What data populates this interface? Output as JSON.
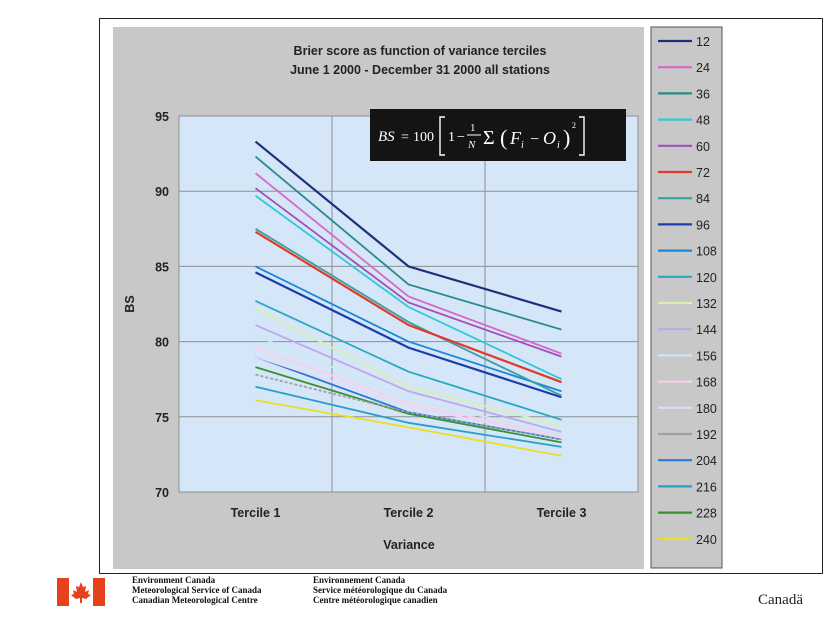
{
  "chart_data": {
    "type": "line",
    "title": "Brier score as function of variance terciles",
    "subtitle": "June 1 2000 - December 31 2000 all stations",
    "xlabel": "Variance",
    "ylabel": "BS",
    "categories": [
      "Tercile 1",
      "Tercile 2",
      "Tercile 3"
    ],
    "ylim": [
      70,
      95
    ],
    "yticks": [
      70,
      75,
      80,
      85,
      90,
      95
    ],
    "grid": true,
    "legend_position": "right",
    "formula": {
      "prefix": "BS",
      "equals": "=",
      "coef": "100",
      "one": "1",
      "minus": "−",
      "frac_num": "1",
      "frac_den": "N",
      "sum": "Σ",
      "F": "F",
      "O": "O",
      "i": "i",
      "sq": "2"
    },
    "series": [
      {
        "name": "12",
        "color": "#1f2f7a",
        "values": [
          93.3,
          85.0,
          82.0
        ]
      },
      {
        "name": "24",
        "color": "#d868c8",
        "values": [
          91.2,
          83.0,
          79.2
        ]
      },
      {
        "name": "36",
        "color": "#2a8a8a",
        "values": [
          92.3,
          83.8,
          80.8
        ]
      },
      {
        "name": "48",
        "color": "#30c8d8",
        "values": [
          89.7,
          82.3,
          77.5
        ]
      },
      {
        "name": "60",
        "color": "#a050b8",
        "values": [
          90.2,
          82.6,
          79.0
        ]
      },
      {
        "name": "72",
        "color": "#e03a28",
        "values": [
          87.3,
          81.1,
          77.3
        ]
      },
      {
        "name": "84",
        "color": "#38a0a0",
        "values": [
          87.5,
          81.3,
          76.4
        ]
      },
      {
        "name": "96",
        "color": "#1a3eaa",
        "values": [
          84.6,
          79.6,
          76.3
        ]
      },
      {
        "name": "108",
        "color": "#1a88d8",
        "values": [
          85.0,
          80.0,
          76.7
        ]
      },
      {
        "name": "120",
        "color": "#28a8c0",
        "values": [
          82.7,
          78.0,
          74.8
        ]
      },
      {
        "name": "132",
        "color": "#d8f0b0",
        "values": [
          82.2,
          77.0,
          74.4
        ]
      },
      {
        "name": "144",
        "color": "#c0a8e8",
        "values": [
          81.1,
          76.7,
          74.0
        ]
      },
      {
        "name": "156",
        "color": "#c8e8f8",
        "values": [
          80.4,
          76.2,
          73.8
        ]
      },
      {
        "name": "168",
        "color": "#f8d0e8",
        "values": [
          79.6,
          75.9,
          73.7
        ]
      },
      {
        "name": "180",
        "color": "#e8d8f8",
        "values": [
          79.0,
          75.7,
          73.6
        ]
      },
      {
        "name": "192",
        "color": "#a0a0a0",
        "values": [
          77.8,
          75.3,
          73.5
        ]
      },
      {
        "name": "204",
        "color": "#2878d8",
        "values": [
          79.0,
          75.3,
          73.5
        ]
      },
      {
        "name": "216",
        "color": "#28a0c8",
        "values": [
          77.0,
          74.6,
          73.0
        ]
      },
      {
        "name": "228",
        "color": "#3a9030",
        "values": [
          78.3,
          75.2,
          73.3
        ]
      },
      {
        "name": "240",
        "color": "#e8e020",
        "values": [
          76.1,
          74.3,
          72.4
        ]
      }
    ]
  },
  "footer": {
    "en_line1": "Environment Canada",
    "en_line2": "Meteorological Service of Canada",
    "en_line3": "Canadian Meteorological Centre",
    "fr_line1": "Environnement Canada",
    "fr_line2": "Service météorologique du Canada",
    "fr_line3": "Centre météorologique canadien",
    "wordmark": "Canadä",
    "flag_color": "#e8401c"
  }
}
